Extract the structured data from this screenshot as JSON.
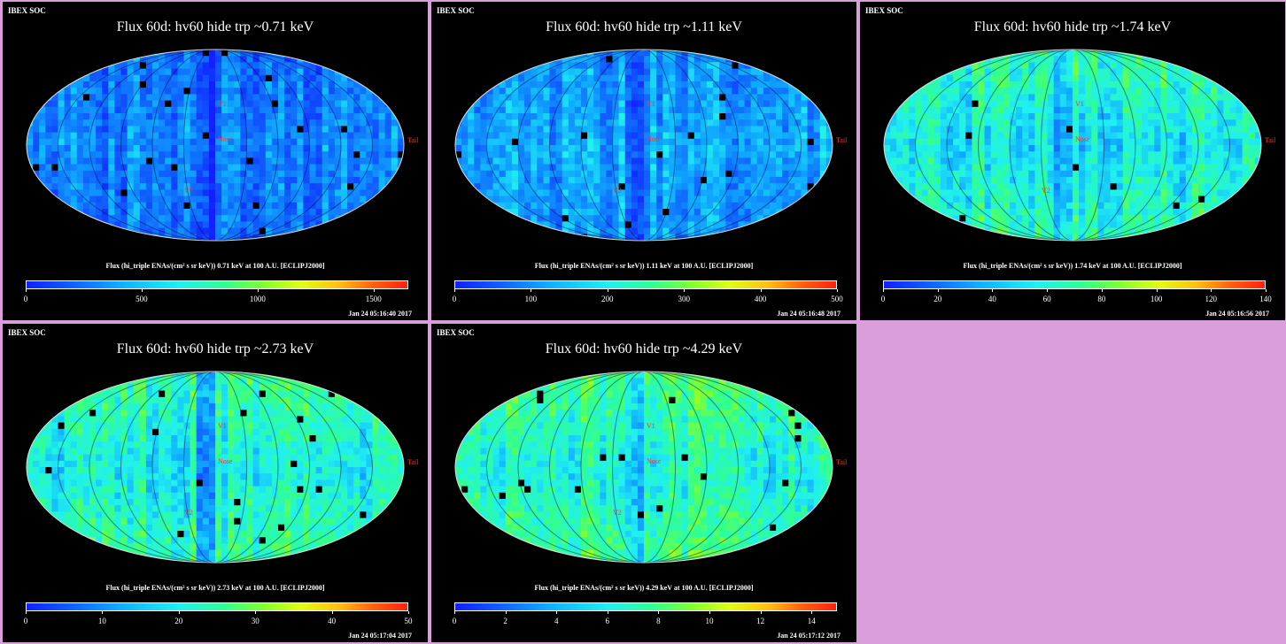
{
  "background_color": "#da9fda",
  "panels": [
    {
      "soc": "IBEX SOC",
      "title": "Flux   60d: hv60 hide trp ~0.71 keV",
      "label": "Flux (hi_triple ENAs/(cm² s sr keV))  0.71 keV at 100 A.U. [ECLIPJ2000]",
      "ticks": [
        "0",
        "500",
        "1000",
        "1500"
      ],
      "vmax": 1650,
      "tickvals": [
        0,
        500,
        1000,
        1500
      ],
      "timestamp": "Jan 24 05:16:40 2017",
      "level": 0.22
    },
    {
      "soc": "IBEX SOC",
      "title": "Flux   60d: hv60 hide trp ~1.11 keV",
      "label": "Flux (hi_triple ENAs/(cm² s sr keV))  1.11 keV at 100 A.U. [ECLIPJ2000]",
      "ticks": [
        "0",
        "100",
        "200",
        "300",
        "400",
        "500"
      ],
      "vmax": 500,
      "tickvals": [
        0,
        100,
        200,
        300,
        400,
        500
      ],
      "timestamp": "Jan 24 05:16:48 2017",
      "level": 0.3
    },
    {
      "soc": "IBEX SOC",
      "title": "Flux   60d: hv60 hide trp ~1.74 keV",
      "label": "Flux (hi_triple ENAs/(cm² s sr keV))  1.74 keV at 100 A.U. [ECLIPJ2000]",
      "ticks": [
        "0",
        "20",
        "40",
        "60",
        "80",
        "100",
        "120",
        "140"
      ],
      "vmax": 140,
      "tickvals": [
        0,
        20,
        40,
        60,
        80,
        100,
        120,
        140
      ],
      "timestamp": "Jan 24 05:16:56 2017",
      "level": 0.4
    },
    {
      "soc": "IBEX SOC",
      "title": "Flux   60d: hv60 hide trp ~2.73 keV",
      "label": "Flux (hi_triple ENAs/(cm² s sr keV))  2.73 keV at 100 A.U. [ECLIPJ2000]",
      "ticks": [
        "0",
        "10",
        "20",
        "30",
        "40",
        "50"
      ],
      "vmax": 50,
      "tickvals": [
        0,
        10,
        20,
        30,
        40,
        50
      ],
      "timestamp": "Jan 24 05:17:04 2017",
      "level": 0.42
    },
    {
      "soc": "IBEX SOC",
      "title": "Flux   60d: hv60 hide trp ~4.29 keV",
      "label": "Flux (hi_triple ENAs/(cm² s sr keV))  4.29 keV at 100 A.U. [ECLIPJ2000]",
      "ticks": [
        "0",
        "2",
        "4",
        "6",
        "8",
        "10",
        "12",
        "14"
      ],
      "vmax": 15,
      "tickvals": [
        0,
        2,
        4,
        6,
        8,
        10,
        12,
        14
      ],
      "timestamp": "Jan 24 05:17:12 2017",
      "level": 0.45
    }
  ],
  "map_labels": {
    "nose": "Nose",
    "tail": "Tail",
    "v1": "V1",
    "v2": "V2"
  }
}
